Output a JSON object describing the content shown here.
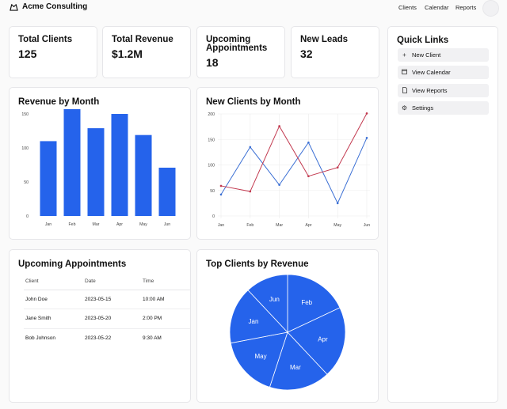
{
  "app": {
    "title": "Acme Consulting"
  },
  "nav": {
    "clients": "Clients",
    "calendar": "Calendar",
    "reports": "Reports"
  },
  "stats": [
    {
      "title": "Total Clients",
      "value": "125"
    },
    {
      "title": "Total Revenue",
      "value": "$1.2M"
    },
    {
      "title": "Upcoming Appointments",
      "value": "18"
    },
    {
      "title": "New Leads",
      "value": "32"
    }
  ],
  "quick_links": {
    "title": "Quick Links",
    "items": [
      {
        "label": "New Client",
        "icon": "plus-icon"
      },
      {
        "label": "View Calendar",
        "icon": "calendar-icon"
      },
      {
        "label": "View Reports",
        "icon": "document-icon"
      },
      {
        "label": "Settings",
        "icon": "gear-icon"
      }
    ]
  },
  "revenue_card": {
    "title": "Revenue by Month"
  },
  "clients_card": {
    "title": "New Clients by Month"
  },
  "appointments": {
    "title": "Upcoming Appointments",
    "columns": [
      "Client",
      "Date",
      "Time"
    ],
    "rows": [
      [
        "John Doe",
        "2023-05-15",
        "10:00 AM"
      ],
      [
        "Jane Smith",
        "2023-05-20",
        "2:00 PM"
      ],
      [
        "Bob Johnson",
        "2023-05-22",
        "9:30 AM"
      ]
    ]
  },
  "top_clients_card": {
    "title": "Top Clients by Revenue"
  },
  "chart_data": [
    {
      "type": "bar",
      "title": "Revenue by Month",
      "categories": [
        "Jan",
        "Feb",
        "Mar",
        "Apr",
        "May",
        "Jun"
      ],
      "values": [
        110,
        157,
        129,
        150,
        119,
        71
      ],
      "ylim": [
        0,
        157
      ],
      "yticks": [
        0,
        50,
        100,
        150
      ],
      "color": "#2563eb",
      "grid": false
    },
    {
      "type": "line",
      "title": "New Clients by Month",
      "categories": [
        "Jan",
        "Feb",
        "Mar",
        "Apr",
        "May",
        "Jun"
      ],
      "series": [
        {
          "values": [
            42,
            135,
            61,
            144,
            25,
            153
          ],
          "color": "#3b6fd4"
        },
        {
          "values": [
            59,
            48,
            176,
            78,
            95,
            201
          ],
          "color": "#c2394f"
        }
      ],
      "ylim": [
        0,
        200
      ],
      "yticks": [
        0,
        50,
        100,
        150,
        200
      ],
      "grid": true
    },
    {
      "type": "pie",
      "title": "Top Clients by Revenue",
      "labels": [
        "Jan",
        "Feb",
        "Mar",
        "Apr",
        "May",
        "Jun"
      ],
      "values": [
        16,
        18,
        17,
        20,
        17,
        12
      ],
      "color": "#2563eb"
    }
  ]
}
